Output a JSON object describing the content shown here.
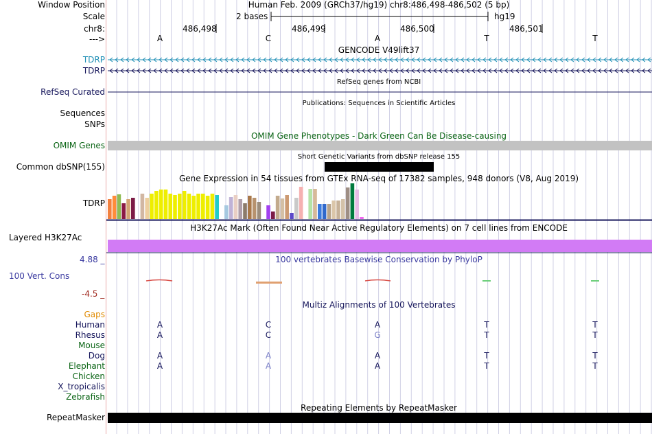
{
  "header": {
    "window_position_label": "Window Position",
    "window_position_value": "Human Feb. 2009 (GRCh37/hg19)   chr8:486,498-486,502 (5 bp)",
    "scale_label": "Scale",
    "scale_text": "2 bases",
    "scale_assembly": "hg19",
    "chrom_label": "chr8:",
    "positions": [
      "486,498",
      "486,499",
      "486,500",
      "486,501"
    ],
    "strand_label": "--->",
    "bases": [
      "A",
      "C",
      "A",
      "T",
      "T"
    ]
  },
  "tracks": {
    "gencode": {
      "title": "GENCODE V49lift37",
      "genes": [
        "TDRP",
        "TDRP"
      ]
    },
    "refseq": {
      "label": "RefSeq Curated",
      "title": "RefSeq genes from NCBI"
    },
    "publications": {
      "label": "Sequences",
      "title": "Publications: Sequences in Scientific Articles"
    },
    "snps_label": "SNPs",
    "omim": {
      "label": "OMIM Genes",
      "title": "OMIM Gene Phenotypes - Dark Green Can Be Disease-causing"
    },
    "dbsnp": {
      "label": "Common dbSNP(155)",
      "title": "Short Genetic Variants from dbSNP release 155"
    },
    "gtex": {
      "label": "TDRP",
      "title": "Gene Expression in 54 tissues from GTEx RNA-seq of 17382 samples, 948 donors (V8, Aug 2019)"
    },
    "h3k27ac": {
      "label": "Layered H3K27Ac",
      "title": "H3K27Ac Mark (Often Found Near Active Regulatory Elements) on 7 cell lines from ENCODE"
    },
    "conservation": {
      "label": "100 Vert. Cons",
      "title": "100 vertebrates Basewise Conservation by PhyloP",
      "max": "4.88 _",
      "min": "-4.5 _"
    },
    "multiz": {
      "title": "Multiz Alignments of 100 Vertebrates",
      "gaps_label": "Gaps",
      "species": [
        {
          "name": "Human",
          "bases": [
            "A",
            "C",
            "A",
            "T",
            "T"
          ]
        },
        {
          "name": "Rhesus",
          "bases": [
            "A",
            "C",
            "G",
            "T",
            "T"
          ]
        },
        {
          "name": "Mouse",
          "bases": [
            "",
            "",
            "",
            "",
            ""
          ]
        },
        {
          "name": "Dog",
          "bases": [
            "A",
            "A",
            "A",
            "T",
            "T"
          ]
        },
        {
          "name": "Elephant",
          "bases": [
            "A",
            "A",
            "A",
            "T",
            "T"
          ]
        },
        {
          "name": "Chicken",
          "bases": [
            "",
            "",
            "",
            "",
            ""
          ]
        },
        {
          "name": "X_tropicalis",
          "bases": [
            "",
            "",
            "",
            "",
            ""
          ]
        },
        {
          "name": "Zebrafish",
          "bases": [
            "",
            "",
            "",
            "",
            ""
          ]
        }
      ]
    },
    "repeatmasker": {
      "label": "RepeatMasker",
      "title": "Repeating Elements by RepeatMasker"
    }
  },
  "colors": {
    "gencode_label": "#1f8fb5",
    "navy": "#14145a",
    "omim_green": "#0a6414",
    "gaps": "#e08a00",
    "cons_label": "#3a3aa0",
    "cons_min": "#a0281e",
    "h3k27ac": "#d27bf5",
    "gray_bar": "#c2c2c2",
    "mismatch": "#7a7fc7"
  },
  "gtex_bars": [
    {
      "color": "#f2803f",
      "level": 0.55
    },
    {
      "color": "#ff8c3a",
      "level": 0.65
    },
    {
      "color": "#8fbc55",
      "level": 0.7
    },
    {
      "color": "#8b1a45",
      "level": 0.45
    },
    {
      "color": "#d4a373",
      "level": 0.55
    },
    {
      "color": "#7b1b46",
      "level": 0.6
    },
    {
      "color": "#ffffff",
      "level": 0
    },
    {
      "color": "#d2b7a2",
      "level": 0.72
    },
    {
      "color": "#eecf9e",
      "level": 0.6
    },
    {
      "color": "#eeee00",
      "level": 0.72
    },
    {
      "color": "#eeee00",
      "level": 0.78
    },
    {
      "color": "#eeee00",
      "level": 0.82
    },
    {
      "color": "#eeee00",
      "level": 0.82
    },
    {
      "color": "#eeee00",
      "level": 0.72
    },
    {
      "color": "#eeee00",
      "level": 0.68
    },
    {
      "color": "#eeee00",
      "level": 0.72
    },
    {
      "color": "#eeee00",
      "level": 0.78
    },
    {
      "color": "#eeee00",
      "level": 0.72
    },
    {
      "color": "#eeee00",
      "level": 0.65
    },
    {
      "color": "#eeee00",
      "level": 0.72
    },
    {
      "color": "#eeee00",
      "level": 0.72
    },
    {
      "color": "#eeee00",
      "level": 0.65
    },
    {
      "color": "#eeee00",
      "level": 0.72
    },
    {
      "color": "#22cccc",
      "level": 0.68
    },
    {
      "color": "#ffffff",
      "level": 0
    },
    {
      "color": "#a6c9e0",
      "level": 0.38
    },
    {
      "color": "#bfb2d6",
      "level": 0.62
    },
    {
      "color": "#e9cfc4",
      "level": 0.68
    },
    {
      "color": "#b09fab",
      "level": 0.55
    },
    {
      "color": "#8c7b6b",
      "level": 0.45
    },
    {
      "color": "#a97849",
      "level": 0.65
    },
    {
      "color": "#b7926e",
      "level": 0.6
    },
    {
      "color": "#9c8d7c",
      "level": 0.48
    },
    {
      "color": "#ffffff",
      "level": 0
    },
    {
      "color": "#a240f0",
      "level": 0.38
    },
    {
      "color": "#7b1b46",
      "level": 0.22
    },
    {
      "color": "#c3ab8d",
      "level": 0.65
    },
    {
      "color": "#d4bfa4",
      "level": 0.58
    },
    {
      "color": "#cc9a72",
      "level": 0.68
    },
    {
      "color": "#5b48c9",
      "level": 0.18
    },
    {
      "color": "#c9c9c9",
      "level": 0.6
    },
    {
      "color": "#f5b1b1",
      "level": 0.9
    },
    {
      "color": "#ffffff",
      "level": 0
    },
    {
      "color": "#b5e3a6",
      "level": 0.85
    },
    {
      "color": "#d7b999",
      "level": 0.85
    },
    {
      "color": "#3b7bde",
      "level": 0.42
    },
    {
      "color": "#3069cc",
      "level": 0.42
    },
    {
      "color": "#b7a38a",
      "level": 0.42
    },
    {
      "color": "#dbc6a9",
      "level": 0.52
    },
    {
      "color": "#c7b299",
      "level": 0.52
    },
    {
      "color": "#d4c2a9",
      "level": 0.55
    },
    {
      "color": "#9e8e84",
      "level": 0.88
    },
    {
      "color": "#007a3e",
      "level": 1.0
    },
    {
      "color": "#e6bce6",
      "level": 0.82
    },
    {
      "color": "#ee66ee",
      "level": 0.06
    }
  ]
}
